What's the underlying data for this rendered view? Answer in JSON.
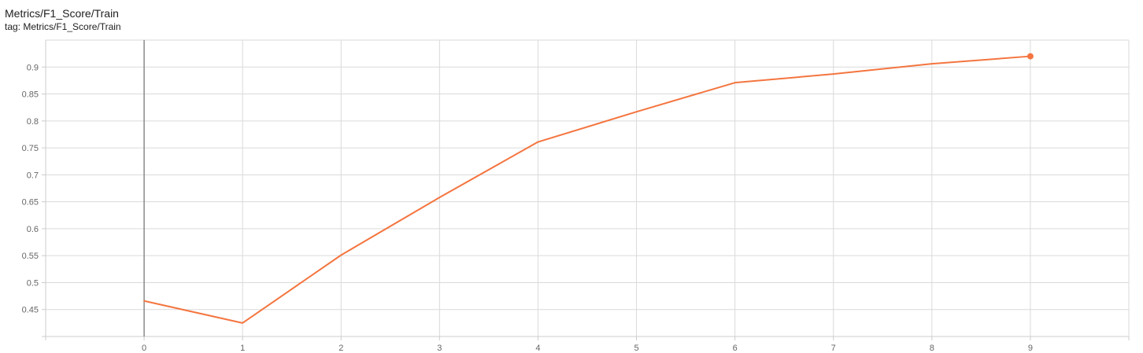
{
  "header": {
    "title": "Metrics/F1_Score/Train",
    "subtitle": "tag: Metrics/F1_Score/Train"
  },
  "chart_data": {
    "type": "line",
    "title": "Metrics/F1_Score/Train",
    "xlabel": "",
    "ylabel": "",
    "x": [
      0,
      1,
      2,
      3,
      4,
      5,
      6,
      7,
      8,
      9
    ],
    "series": [
      {
        "values": [
          0.466,
          0.425,
          0.551,
          0.658,
          0.761,
          0.817,
          0.871,
          0.887,
          0.906,
          0.92
        ],
        "color": "#f4753f"
      }
    ],
    "xlim": [
      -1,
      10
    ],
    "ylim": [
      0.4,
      0.95
    ],
    "xticks": [
      "0",
      "1",
      "2",
      "3",
      "4",
      "5",
      "6",
      "7",
      "8",
      "9"
    ],
    "yticks": [
      "0.45",
      "0.5",
      "0.55",
      "0.6",
      "0.65",
      "0.7",
      "0.75",
      "0.8",
      "0.85",
      "0.9"
    ],
    "highlight_last_point": true,
    "grid": true
  }
}
